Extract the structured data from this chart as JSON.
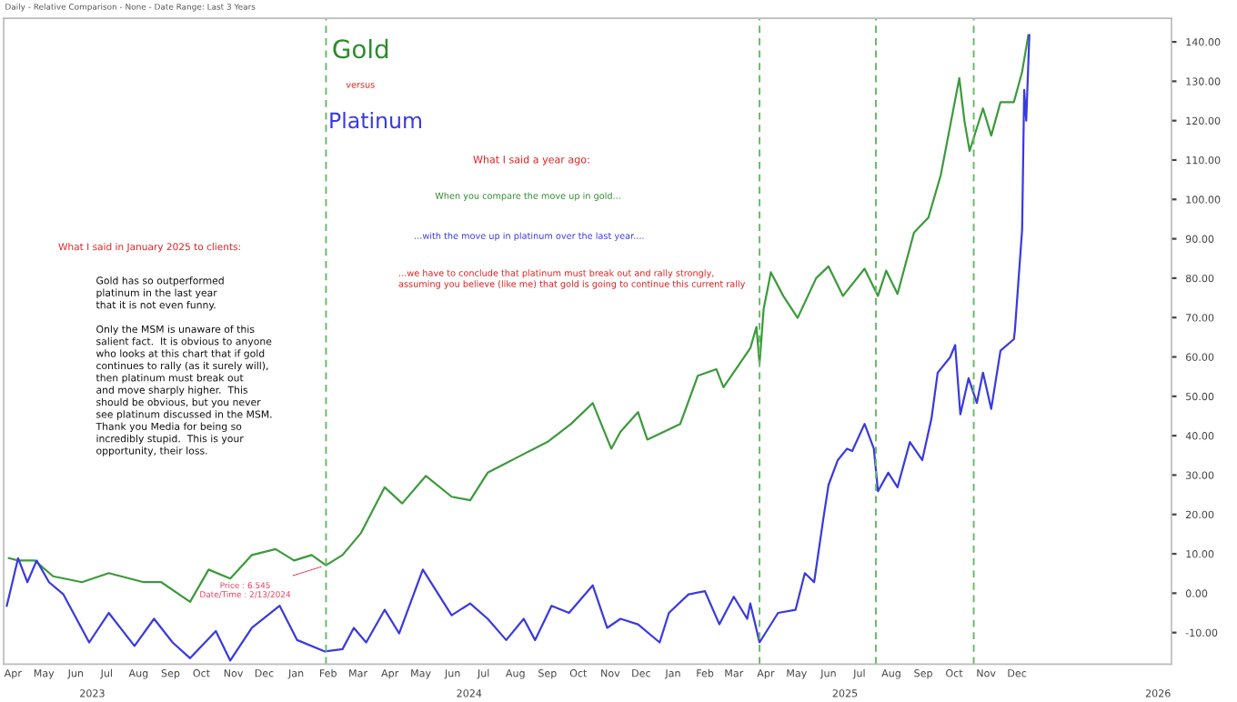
{
  "chart_data": {
    "type": "line",
    "title": "Daily - Relative Comparison - None - Date Range: Last 3 Years",
    "series": [
      {
        "name": null,
        "color": "#3c9a3c",
        "x": [
          "2023-04-11",
          "2023-04-20",
          "2023-05-06",
          "2023-05-24",
          "2023-06-21",
          "2023-07-17",
          "2023-08-20",
          "2023-09-06",
          "2023-10-04",
          "2023-10-22",
          "2023-11-12",
          "2023-12-03",
          "2023-12-26",
          "2024-01-13",
          "2024-01-30",
          "2024-02-13",
          "2024-02-29",
          "2024-03-18",
          "2024-04-10",
          "2024-04-27",
          "2024-05-20",
          "2024-06-14",
          "2024-07-02",
          "2024-07-19",
          "2024-08-16",
          "2024-09-15",
          "2024-10-08",
          "2024-10-29",
          "2024-11-16",
          "2024-11-25",
          "2024-12-12",
          "2024-12-21",
          "2025-01-22",
          "2025-02-08",
          "2025-02-26",
          "2025-03-05",
          "2025-03-31",
          "2025-04-06",
          "2025-04-09",
          "2025-04-13",
          "2025-04-20",
          "2025-05-02",
          "2025-05-16",
          "2025-06-03",
          "2025-06-15",
          "2025-06-29",
          "2025-07-20",
          "2025-08-02",
          "2025-08-10",
          "2025-08-21",
          "2025-09-06",
          "2025-09-20",
          "2025-10-02",
          "2025-10-20",
          "2025-10-25",
          "2025-10-30",
          "2025-11-12",
          "2025-11-20",
          "2025-11-29",
          "2025-12-12",
          "2025-12-20",
          "2025-12-26"
        ],
        "values": [
          8.9,
          8.3,
          8.3,
          4.3,
          2.8,
          5.1,
          2.8,
          2.8,
          -2.2,
          6,
          3.7,
          9.7,
          11.2,
          8.3,
          9.7,
          7.1,
          9.7,
          15.3,
          26.9,
          22.8,
          29.8,
          24.5,
          23.6,
          30.6,
          34.4,
          38.4,
          43,
          48.3,
          36.7,
          41,
          46,
          39,
          43,
          55.2,
          56.9,
          52.3,
          62.2,
          67.6,
          58.3,
          72.2,
          81.5,
          75.5,
          69.9,
          80,
          83,
          75.5,
          82.4,
          75.5,
          81.9,
          76,
          91.6,
          95.4,
          106.2,
          130.8,
          119.9,
          112.3,
          123.1,
          116.2,
          124.7,
          124.7,
          132.4,
          141.7
        ]
      },
      {
        "name": null,
        "color": "#3a3ae0",
        "x": [
          "2023-04-09",
          "2023-04-20",
          "2023-04-29",
          "2023-05-08",
          "2023-05-20",
          "2023-06-03",
          "2023-06-28",
          "2023-07-17",
          "2023-08-11",
          "2023-08-30",
          "2023-09-17",
          "2023-10-04",
          "2023-10-29",
          "2023-11-12",
          "2023-12-03",
          "2023-12-30",
          "2024-01-16",
          "2024-02-12",
          "2024-02-29",
          "2024-03-11",
          "2024-03-23",
          "2024-04-10",
          "2024-04-24",
          "2024-05-17",
          "2024-06-14",
          "2024-07-02",
          "2024-07-19",
          "2024-08-06",
          "2024-08-23",
          "2024-09-03",
          "2024-09-19",
          "2024-10-06",
          "2024-10-29",
          "2024-11-12",
          "2024-11-25",
          "2024-12-12",
          "2025-01-02",
          "2025-01-11",
          "2025-01-30",
          "2025-02-15",
          "2025-03-01",
          "2025-03-15",
          "2025-03-28",
          "2025-03-31",
          "2025-04-09",
          "2025-04-27",
          "2025-05-14",
          "2025-05-23",
          "2025-06-01",
          "2025-06-10",
          "2025-06-15",
          "2025-06-24",
          "2025-07-03",
          "2025-07-08",
          "2025-07-20",
          "2025-07-29",
          "2025-08-02",
          "2025-08-12",
          "2025-08-21",
          "2025-09-02",
          "2025-09-14",
          "2025-09-23",
          "2025-09-29",
          "2025-10-11",
          "2025-10-16",
          "2025-10-21",
          "2025-10-29",
          "2025-11-06",
          "2025-11-12",
          "2025-11-20",
          "2025-11-29",
          "2025-12-12",
          "2025-12-13",
          "2025-12-20",
          "2025-12-22",
          "2025-12-24",
          "2025-12-27"
        ],
        "values": [
          -3.2,
          8.9,
          2.8,
          8.3,
          2.8,
          -0.3,
          -12.5,
          -5,
          -13.4,
          -6.5,
          -12.5,
          -16.5,
          -9.6,
          -17.1,
          -8.8,
          -3.2,
          -11.9,
          -14.8,
          -14.2,
          -8.8,
          -12.5,
          -4.2,
          -10.2,
          6,
          -5.6,
          -2.6,
          -6.5,
          -11.9,
          -6.5,
          -11.9,
          -3.2,
          -5,
          2,
          -8.8,
          -6.5,
          -7.9,
          -12.5,
          -5,
          -0.3,
          0.5,
          -7.9,
          -0.9,
          -6.5,
          -2.6,
          -12.5,
          -5,
          -4.2,
          5.1,
          2.8,
          19,
          27.5,
          33.8,
          36.7,
          36.1,
          43,
          36.7,
          25.9,
          30.6,
          26.9,
          38.4,
          33.8,
          44.4,
          56,
          59.9,
          63,
          45.4,
          54.6,
          48.3,
          56,
          46.8,
          61.6,
          64.5,
          66.8,
          92.3,
          127.8,
          120,
          141.7
        ]
      }
    ],
    "xlim": [
      "2023-04-06",
      "2026-05-14"
    ],
    "xticks": [
      {
        "value": "2023-04-15",
        "label": "Apr"
      },
      {
        "value": "2023-05-15",
        "label": "May"
      },
      {
        "value": "2023-06-15",
        "label": "Jun"
      },
      {
        "value": "2023-07-15",
        "label": "Jul"
      },
      {
        "value": "2023-08-15",
        "label": "Aug"
      },
      {
        "value": "2023-09-15",
        "label": "Sep"
      },
      {
        "value": "2023-10-15",
        "label": "Oct"
      },
      {
        "value": "2023-11-15",
        "label": "Nov"
      },
      {
        "value": "2023-12-15",
        "label": "Dec"
      },
      {
        "value": "2024-01-15",
        "label": "Jan"
      },
      {
        "value": "2024-02-15",
        "label": "Feb"
      },
      {
        "value": "2024-03-15",
        "label": "Mar"
      },
      {
        "value": "2024-04-15",
        "label": "Apr"
      },
      {
        "value": "2024-05-15",
        "label": "May"
      },
      {
        "value": "2024-06-15",
        "label": "Jun"
      },
      {
        "value": "2024-07-15",
        "label": "Jul"
      },
      {
        "value": "2024-08-15",
        "label": "Aug"
      },
      {
        "value": "2024-09-15",
        "label": "Sep"
      },
      {
        "value": "2024-10-15",
        "label": "Oct"
      },
      {
        "value": "2024-11-15",
        "label": "Nov"
      },
      {
        "value": "2024-12-15",
        "label": "Dec"
      },
      {
        "value": "2025-01-15",
        "label": "Jan"
      },
      {
        "value": "2025-02-15",
        "label": "Feb"
      },
      {
        "value": "2025-03-15",
        "label": "Mar"
      },
      {
        "value": "2025-04-15",
        "label": "Apr"
      },
      {
        "value": "2025-05-15",
        "label": "May"
      },
      {
        "value": "2025-06-15",
        "label": "Jun"
      },
      {
        "value": "2025-07-15",
        "label": "Jul"
      },
      {
        "value": "2025-08-15",
        "label": "Aug"
      },
      {
        "value": "2025-09-15",
        "label": "Sep"
      },
      {
        "value": "2025-10-15",
        "label": "Oct"
      },
      {
        "value": "2025-11-15",
        "label": "Nov"
      },
      {
        "value": "2025-12-15",
        "label": "Dec"
      }
    ],
    "x2lim": [
      "2023-04-06",
      "2026-05-14"
    ],
    "x2ticks": [
      {
        "value": "2023-07-01",
        "label": "2023"
      },
      {
        "value": "2024-07-01",
        "label": "2024"
      },
      {
        "value": "2025-07-01",
        "label": "2025"
      },
      {
        "value": "2026-05-01",
        "label": "2026"
      }
    ],
    "ylim": [
      -18,
      146
    ],
    "yticks": [
      {
        "value": -10,
        "label": "-10.00"
      },
      {
        "value": 0,
        "label": "0.00"
      },
      {
        "value": 10,
        "label": "10.00"
      },
      {
        "value": 20,
        "label": "20.00"
      },
      {
        "value": 30,
        "label": "30.00"
      },
      {
        "value": 40,
        "label": "40.00"
      },
      {
        "value": 50,
        "label": "50.00"
      },
      {
        "value": 60,
        "label": "60.00"
      },
      {
        "value": 70,
        "label": "70.00"
      },
      {
        "value": 80,
        "label": "80.00"
      },
      {
        "value": 90,
        "label": "90.00"
      },
      {
        "value": 100,
        "label": "100.00"
      },
      {
        "value": 110,
        "label": "110.00"
      },
      {
        "value": 120,
        "label": "120.00"
      },
      {
        "value": 130,
        "label": "130.00"
      },
      {
        "value": 140,
        "label": "140.00"
      }
    ],
    "ref_lines": [
      {
        "axis": "x",
        "value": "2024-02-13",
        "color": "#66bb66",
        "line_style": "dashed"
      },
      {
        "axis": "x",
        "value": "2025-04-09",
        "color": "#66bb66",
        "line_style": "dashed"
      },
      {
        "axis": "x",
        "value": "2025-07-31",
        "color": "#66bb66",
        "line_style": "dashed"
      },
      {
        "axis": "x",
        "value": "2025-11-03",
        "color": "#66bb66",
        "line_style": "dashed"
      }
    ],
    "annotations": [
      "Gold",
      "versus",
      "Platinum",
      "What I said a year ago:",
      "When you compare the move up in gold...",
      "...with the move up in platinum over the last year....",
      "...we have to conclude that platinum must break out and rally strongly,\nassuming you believe (like me) that gold is going to continue this current rally",
      "What I said in January 2025 to clients:",
      "Gold has so outperformed\nplatinum in the last year\nthat it is not even funny.\n\nOnly the MSM is unaware of this\nsalient fact.  It is obvious to anyone\nwho looks at this chart that if gold\ncontinues to rally (as it surely will),\nthen platinum must break out\nand move sharply higher.  This\nshould be obvious, but you never\nsee platinum discussed in the MSM.\nThank you Media for being so\nincredibly stupid.  This is your\nopportunity, their loss.",
      {
        "text": "Price : 6.545\nDate/Time : 2/13/2024",
        "x": "2024-02-13",
        "y": 7.1
      }
    ],
    "grid": false,
    "line_style": "solid",
    "marker": "none"
  }
}
